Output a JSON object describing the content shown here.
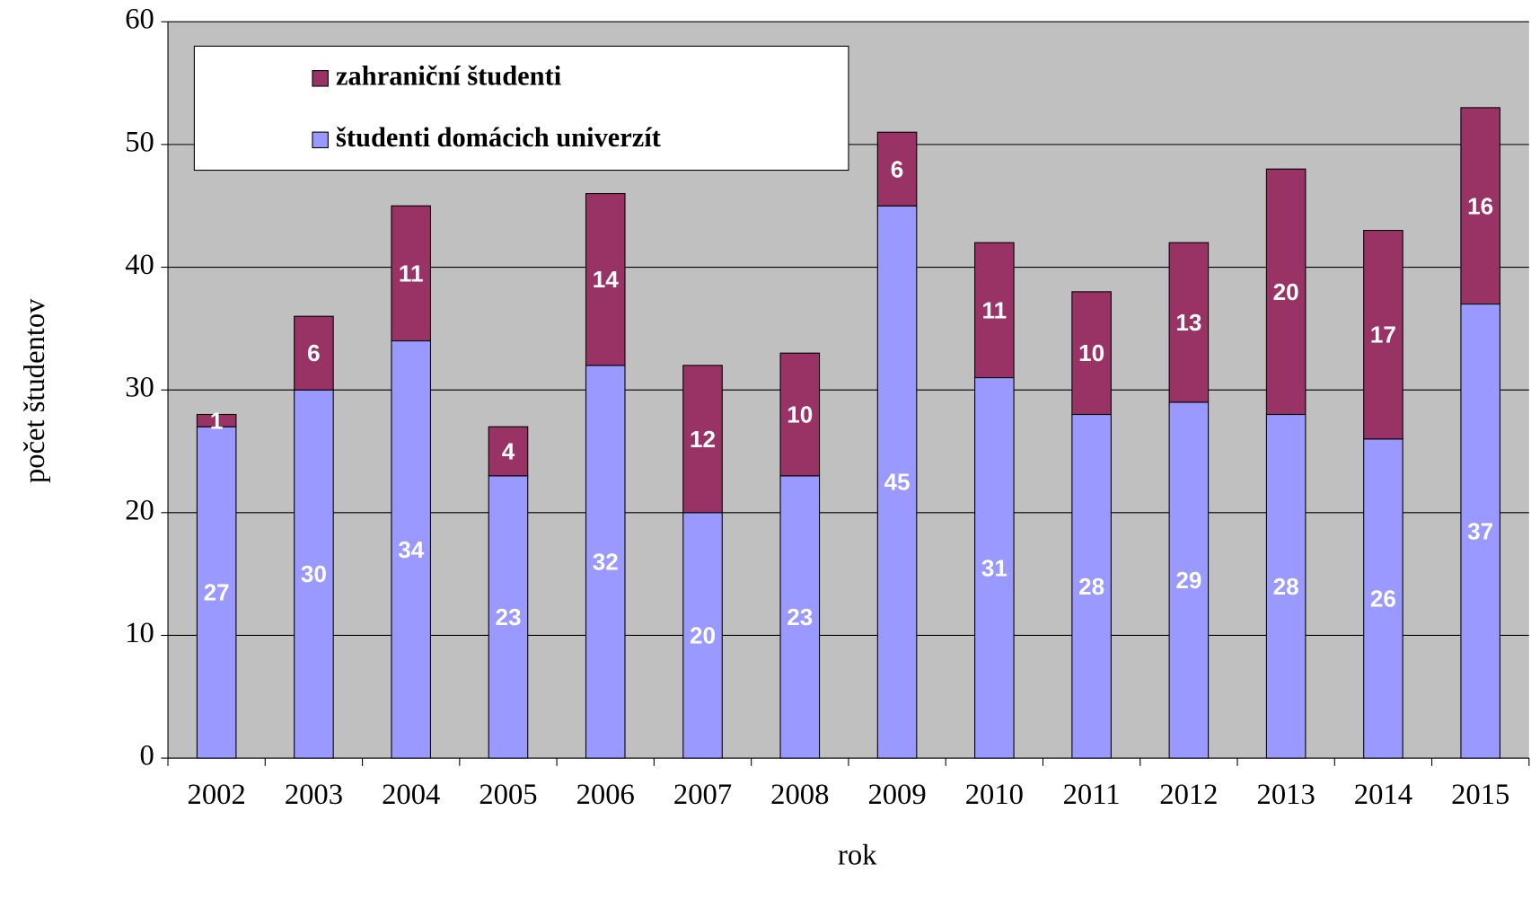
{
  "chart_data": {
    "type": "stacked_bar",
    "x_label": "rok",
    "y_label": "počet študentov",
    "categories": [
      "2002",
      "2003",
      "2004",
      "2005",
      "2006",
      "2007",
      "2008",
      "2009",
      "2010",
      "2011",
      "2012",
      "2013",
      "2014",
      "2015"
    ],
    "series": [
      {
        "name": "študenti domácich univerzít",
        "color": "#9999ff",
        "values": [
          27,
          30,
          34,
          23,
          32,
          20,
          23,
          45,
          31,
          28,
          29,
          28,
          26,
          37
        ]
      },
      {
        "name": "zahraniční študenti",
        "color": "#993366",
        "values": [
          1,
          6,
          11,
          4,
          14,
          12,
          10,
          6,
          11,
          10,
          13,
          20,
          17,
          16
        ]
      }
    ],
    "ylim": [
      0,
      60
    ],
    "yticks": [
      0,
      10,
      20,
      30,
      40,
      50,
      60
    ],
    "grid": true,
    "legend": "top-left"
  }
}
